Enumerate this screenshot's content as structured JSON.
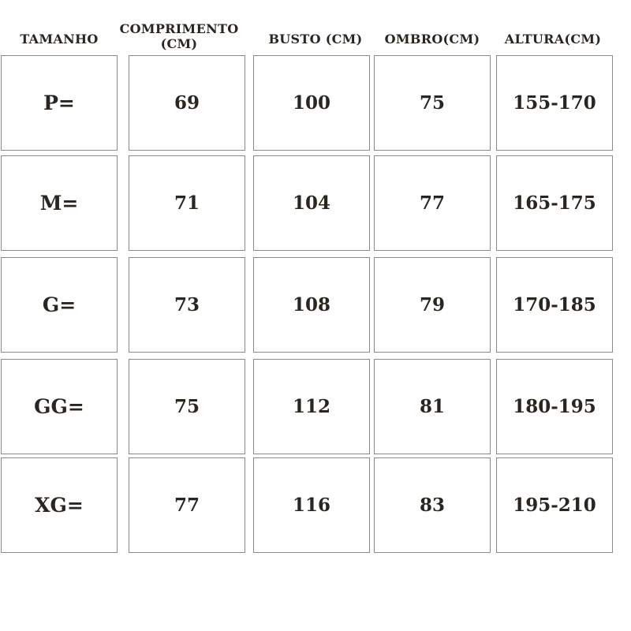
{
  "headers": [
    "TAMANHO",
    "COMPRIMENTO (CM)",
    "BUSTO (CM)",
    "OMBRO(CM)",
    "ALTURA(CM)"
  ],
  "header_comprimento_line1": "COMPRIMENTO",
  "header_comprimento_line2": "(CM)",
  "rows": [
    {
      "size": "P=",
      "comprimento": "69",
      "busto": "100",
      "ombro": "75",
      "altura": "155-170"
    },
    {
      "size": "M=",
      "comprimento": "71",
      "busto": "104",
      "ombro": "77",
      "altura": "165-175"
    },
    {
      "size": "G=",
      "comprimento": "73",
      "busto": "108",
      "ombro": "79",
      "altura": "170-185"
    },
    {
      "size": "GG=",
      "comprimento": "75",
      "busto": "112",
      "ombro": "81",
      "altura": "180-195"
    },
    {
      "size": "XG=",
      "comprimento": "77",
      "busto": "116",
      "ombro": "83",
      "altura": "195-210"
    }
  ],
  "colors": {
    "text": "#2b2520",
    "border": "#8a8a8a",
    "background": "#ffffff"
  }
}
